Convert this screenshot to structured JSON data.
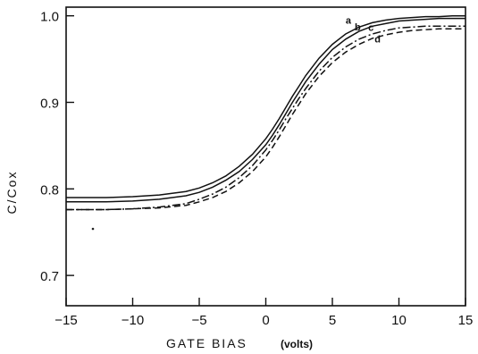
{
  "chart_data": {
    "type": "line",
    "title": "",
    "xlabel": "GATE BIAS",
    "xlabel_units": "(volts)",
    "ylabel": "C/Cox",
    "xlim": [
      -15,
      15
    ],
    "ylim": [
      0.665,
      1.01
    ],
    "xticks": [
      -15,
      -10,
      -5,
      0,
      5,
      10,
      15
    ],
    "xtick_labels": [
      "−15",
      "−10",
      "−5",
      "0",
      "5",
      "10",
      "15"
    ],
    "yticks": [
      0.7,
      0.8,
      0.9,
      1.0
    ],
    "ytick_labels": [
      "0.7",
      "0.8",
      "0.9",
      "1.0"
    ],
    "grid": false,
    "legend": "none",
    "x": [
      -15,
      -12,
      -10,
      -8,
      -6,
      -5,
      -4,
      -3,
      -2,
      -1,
      0,
      0.5,
      1,
      1.5,
      2,
      2.5,
      3,
      4,
      5,
      6,
      7,
      8,
      9,
      10,
      11,
      12,
      13,
      14,
      15
    ],
    "series": [
      {
        "name": "a",
        "style": "solid",
        "values": [
          0.79,
          0.79,
          0.791,
          0.793,
          0.797,
          0.801,
          0.807,
          0.815,
          0.826,
          0.84,
          0.858,
          0.869,
          0.881,
          0.894,
          0.907,
          0.919,
          0.931,
          0.951,
          0.967,
          0.979,
          0.987,
          0.992,
          0.995,
          0.997,
          0.998,
          0.999,
          0.999,
          1.0,
          1.0
        ]
      },
      {
        "name": "b",
        "style": "solid",
        "values": [
          0.785,
          0.785,
          0.786,
          0.788,
          0.792,
          0.796,
          0.802,
          0.81,
          0.82,
          0.834,
          0.851,
          0.862,
          0.874,
          0.887,
          0.9,
          0.912,
          0.924,
          0.944,
          0.961,
          0.973,
          0.982,
          0.988,
          0.991,
          0.994,
          0.995,
          0.996,
          0.997,
          0.997,
          0.997
        ]
      },
      {
        "name": "c",
        "style": "dashdot",
        "values": [
          0.776,
          0.776,
          0.777,
          0.779,
          0.783,
          0.788,
          0.794,
          0.802,
          0.813,
          0.827,
          0.845,
          0.856,
          0.868,
          0.881,
          0.893,
          0.905,
          0.916,
          0.936,
          0.952,
          0.964,
          0.973,
          0.979,
          0.983,
          0.986,
          0.987,
          0.988,
          0.988,
          0.988,
          0.988
        ]
      },
      {
        "name": "d",
        "style": "dashed",
        "values": [
          0.776,
          0.776,
          0.777,
          0.778,
          0.781,
          0.785,
          0.79,
          0.797,
          0.807,
          0.82,
          0.837,
          0.848,
          0.86,
          0.873,
          0.886,
          0.898,
          0.91,
          0.93,
          0.946,
          0.958,
          0.967,
          0.974,
          0.978,
          0.981,
          0.983,
          0.984,
          0.985,
          0.985,
          0.985
        ]
      }
    ]
  }
}
